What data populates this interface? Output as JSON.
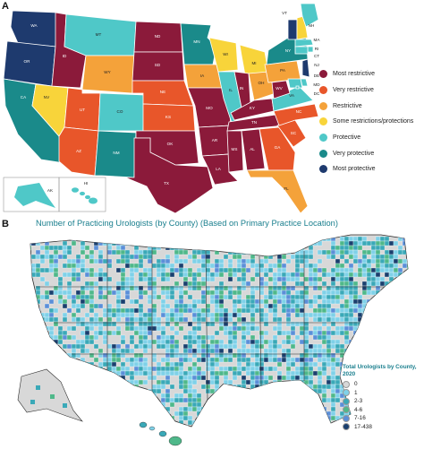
{
  "panel_a": {
    "label": "A",
    "inset_labels": {
      "alaska": "AK",
      "hawaii": "HI"
    },
    "legend": [
      {
        "label": "Most restrictive",
        "color": "#8b1a3a"
      },
      {
        "label": "Very restrictive",
        "color": "#e8562a"
      },
      {
        "label": "Restrictive",
        "color": "#f4a23a"
      },
      {
        "label": "Some restrictions/protections",
        "color": "#f8d43a"
      },
      {
        "label": "Protective",
        "color": "#4fc8c8"
      },
      {
        "label": "Very protective",
        "color": "#1a8a8a"
      },
      {
        "label": "Most protective",
        "color": "#1e3a6e"
      }
    ],
    "states": [
      {
        "abbr": "WA",
        "cat": 6
      },
      {
        "abbr": "OR",
        "cat": 6
      },
      {
        "abbr": "CA",
        "cat": 5
      },
      {
        "abbr": "NV",
        "cat": 3
      },
      {
        "abbr": "ID",
        "cat": 0
      },
      {
        "abbr": "MT",
        "cat": 4
      },
      {
        "abbr": "WY",
        "cat": 2
      },
      {
        "abbr": "UT",
        "cat": 1
      },
      {
        "abbr": "AZ",
        "cat": 1
      },
      {
        "abbr": "CO",
        "cat": 4
      },
      {
        "abbr": "NM",
        "cat": 5
      },
      {
        "abbr": "ND",
        "cat": 0
      },
      {
        "abbr": "SD",
        "cat": 0
      },
      {
        "abbr": "NE",
        "cat": 1
      },
      {
        "abbr": "KS",
        "cat": 1
      },
      {
        "abbr": "OK",
        "cat": 0
      },
      {
        "abbr": "TX",
        "cat": 0
      },
      {
        "abbr": "MN",
        "cat": 5
      },
      {
        "abbr": "IA",
        "cat": 2
      },
      {
        "abbr": "MO",
        "cat": 0
      },
      {
        "abbr": "AR",
        "cat": 0
      },
      {
        "abbr": "LA",
        "cat": 0
      },
      {
        "abbr": "WI",
        "cat": 3
      },
      {
        "abbr": "IL",
        "cat": 4
      },
      {
        "abbr": "MI",
        "cat": 3
      },
      {
        "abbr": "IN",
        "cat": 0
      },
      {
        "abbr": "OH",
        "cat": 2
      },
      {
        "abbr": "KY",
        "cat": 0
      },
      {
        "abbr": "TN",
        "cat": 0
      },
      {
        "abbr": "MS",
        "cat": 0
      },
      {
        "abbr": "AL",
        "cat": 0
      },
      {
        "abbr": "GA",
        "cat": 1
      },
      {
        "abbr": "FL",
        "cat": 2
      },
      {
        "abbr": "SC",
        "cat": 1
      },
      {
        "abbr": "NC",
        "cat": 1
      },
      {
        "abbr": "VA",
        "cat": 4
      },
      {
        "abbr": "WV",
        "cat": 0
      },
      {
        "abbr": "PA",
        "cat": 2
      },
      {
        "abbr": "NY",
        "cat": 5
      },
      {
        "abbr": "VT",
        "cat": 6
      },
      {
        "abbr": "NH",
        "cat": 3
      },
      {
        "abbr": "ME",
        "cat": 4
      },
      {
        "abbr": "MA",
        "cat": 4
      },
      {
        "abbr": "RI",
        "cat": 4
      },
      {
        "abbr": "CT",
        "cat": 4
      },
      {
        "abbr": "NJ",
        "cat": 6
      },
      {
        "abbr": "DE",
        "cat": 4
      },
      {
        "abbr": "MD",
        "cat": 4
      },
      {
        "abbr": "DC",
        "cat": 4
      },
      {
        "abbr": "AK",
        "cat": 4
      },
      {
        "abbr": "HI",
        "cat": 4
      }
    ]
  },
  "panel_b": {
    "label": "B",
    "title": "Number of Practicing Urologists (by County) (Based on Primary Practice Location)",
    "legend_title": "Total Urologists by County, 2020",
    "legend": [
      {
        "label": "0",
        "color": "#d8d8d8"
      },
      {
        "label": "1",
        "color": "#7fd1e8"
      },
      {
        "label": "2-3",
        "color": "#3aa9b8"
      },
      {
        "label": "4-6",
        "color": "#4fb88a"
      },
      {
        "label": "7-16",
        "color": "#5b8fd8"
      },
      {
        "label": "17-438",
        "color": "#1a3f6e"
      }
    ]
  }
}
